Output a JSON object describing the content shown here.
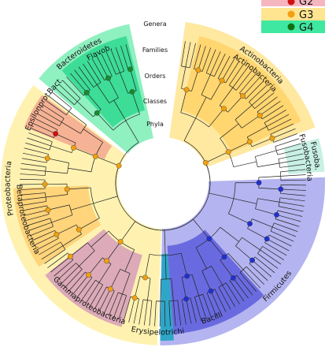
{
  "legend": {
    "items": [
      {
        "label": "G2"
      },
      {
        "label": "G3"
      },
      {
        "label": "G4"
      }
    ]
  },
  "levels": [
    "Genera",
    "Families",
    "Orders",
    "Classes",
    "Phyla"
  ],
  "clades": [
    {
      "label": "Bacteroidetes"
    },
    {
      "label": "Bact."
    },
    {
      "label": "Flavob."
    },
    {
      "label": "Actinobacteria"
    },
    {
      "label": "Actinobacteria"
    },
    {
      "label": "Fusoba."
    },
    {
      "label": "Fusobacteria"
    },
    {
      "label": "Epsilonprot."
    },
    {
      "label": "Proteobacteria"
    },
    {
      "label": "Betaproteobacteria"
    },
    {
      "label": "Gammaproteobacteria"
    },
    {
      "label": "Erysipelotrichi"
    },
    {
      "label": "Bacilli"
    },
    {
      "label": "Firmicutes"
    }
  ]
}
